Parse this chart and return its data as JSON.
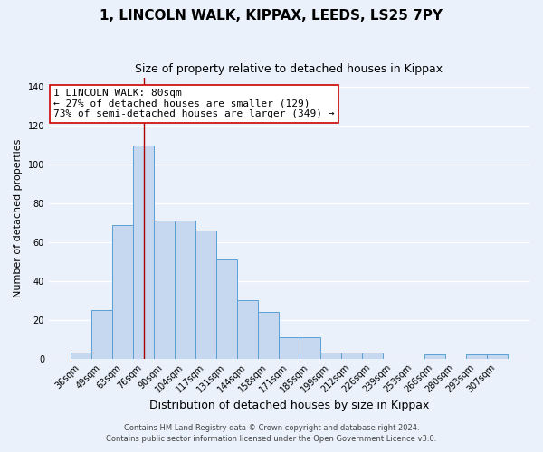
{
  "title": "1, LINCOLN WALK, KIPPAX, LEEDS, LS25 7PY",
  "subtitle": "Size of property relative to detached houses in Kippax",
  "xlabel": "Distribution of detached houses by size in Kippax",
  "ylabel": "Number of detached properties",
  "categories": [
    "36sqm",
    "49sqm",
    "63sqm",
    "76sqm",
    "90sqm",
    "104sqm",
    "117sqm",
    "131sqm",
    "144sqm",
    "158sqm",
    "171sqm",
    "185sqm",
    "199sqm",
    "212sqm",
    "226sqm",
    "239sqm",
    "253sqm",
    "266sqm",
    "280sqm",
    "293sqm",
    "307sqm"
  ],
  "values": [
    3,
    25,
    69,
    110,
    71,
    71,
    66,
    51,
    30,
    24,
    11,
    11,
    3,
    3,
    3,
    0,
    0,
    2,
    0,
    2,
    2
  ],
  "bar_color": "#c5d8f0",
  "bar_edge_color": "#5a9fd4",
  "background_color": "#eaf1fb",
  "grid_color": "#ffffff",
  "vline_index": 3,
  "vline_color": "#aa0000",
  "annotation_text": "1 LINCOLN WALK: 80sqm\n← 27% of detached houses are smaller (129)\n73% of semi-detached houses are larger (349) →",
  "annotation_box_color": "#ffffff",
  "annotation_box_edge_color": "#cc0000",
  "ylim": [
    0,
    145
  ],
  "yticks": [
    0,
    20,
    40,
    60,
    80,
    100,
    120,
    140
  ],
  "footer1": "Contains HM Land Registry data © Crown copyright and database right 2024.",
  "footer2": "Contains public sector information licensed under the Open Government Licence v3.0.",
  "title_fontsize": 11,
  "subtitle_fontsize": 9,
  "xlabel_fontsize": 9,
  "ylabel_fontsize": 8,
  "tick_fontsize": 7,
  "annotation_fontsize": 8,
  "footer_fontsize": 6
}
